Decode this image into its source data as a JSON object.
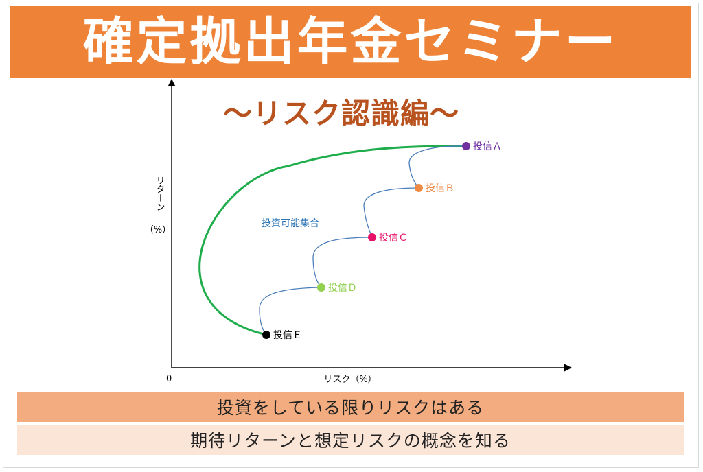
{
  "banner": {
    "title": "確定拠出年金セミナー"
  },
  "subtitle": "〜リスク認識編〜",
  "chart_data": {
    "type": "scatter",
    "xlabel": "リスク（%）",
    "ylabel_line1": "リターン",
    "ylabel_line2": "（%）",
    "origin_label": "0",
    "frontier_label": "投資可能集合",
    "points": [
      {
        "name": "投信Ａ",
        "color": "#7030a0"
      },
      {
        "name": "投信Ｂ",
        "color": "#ed8a45"
      },
      {
        "name": "投信Ｃ",
        "color": "#e8116a"
      },
      {
        "name": "投信Ｄ",
        "color": "#92d050"
      },
      {
        "name": "投信Ｅ",
        "color": "#000000"
      }
    ],
    "frontier_color": "#1fad4b",
    "connector_color": "#4a7ebb",
    "frontier_label_color": "#2e75b6"
  },
  "bars": {
    "line1": "投資をしている限りリスクはある",
    "line2": "期待リターンと想定リスクの概念を知る"
  }
}
